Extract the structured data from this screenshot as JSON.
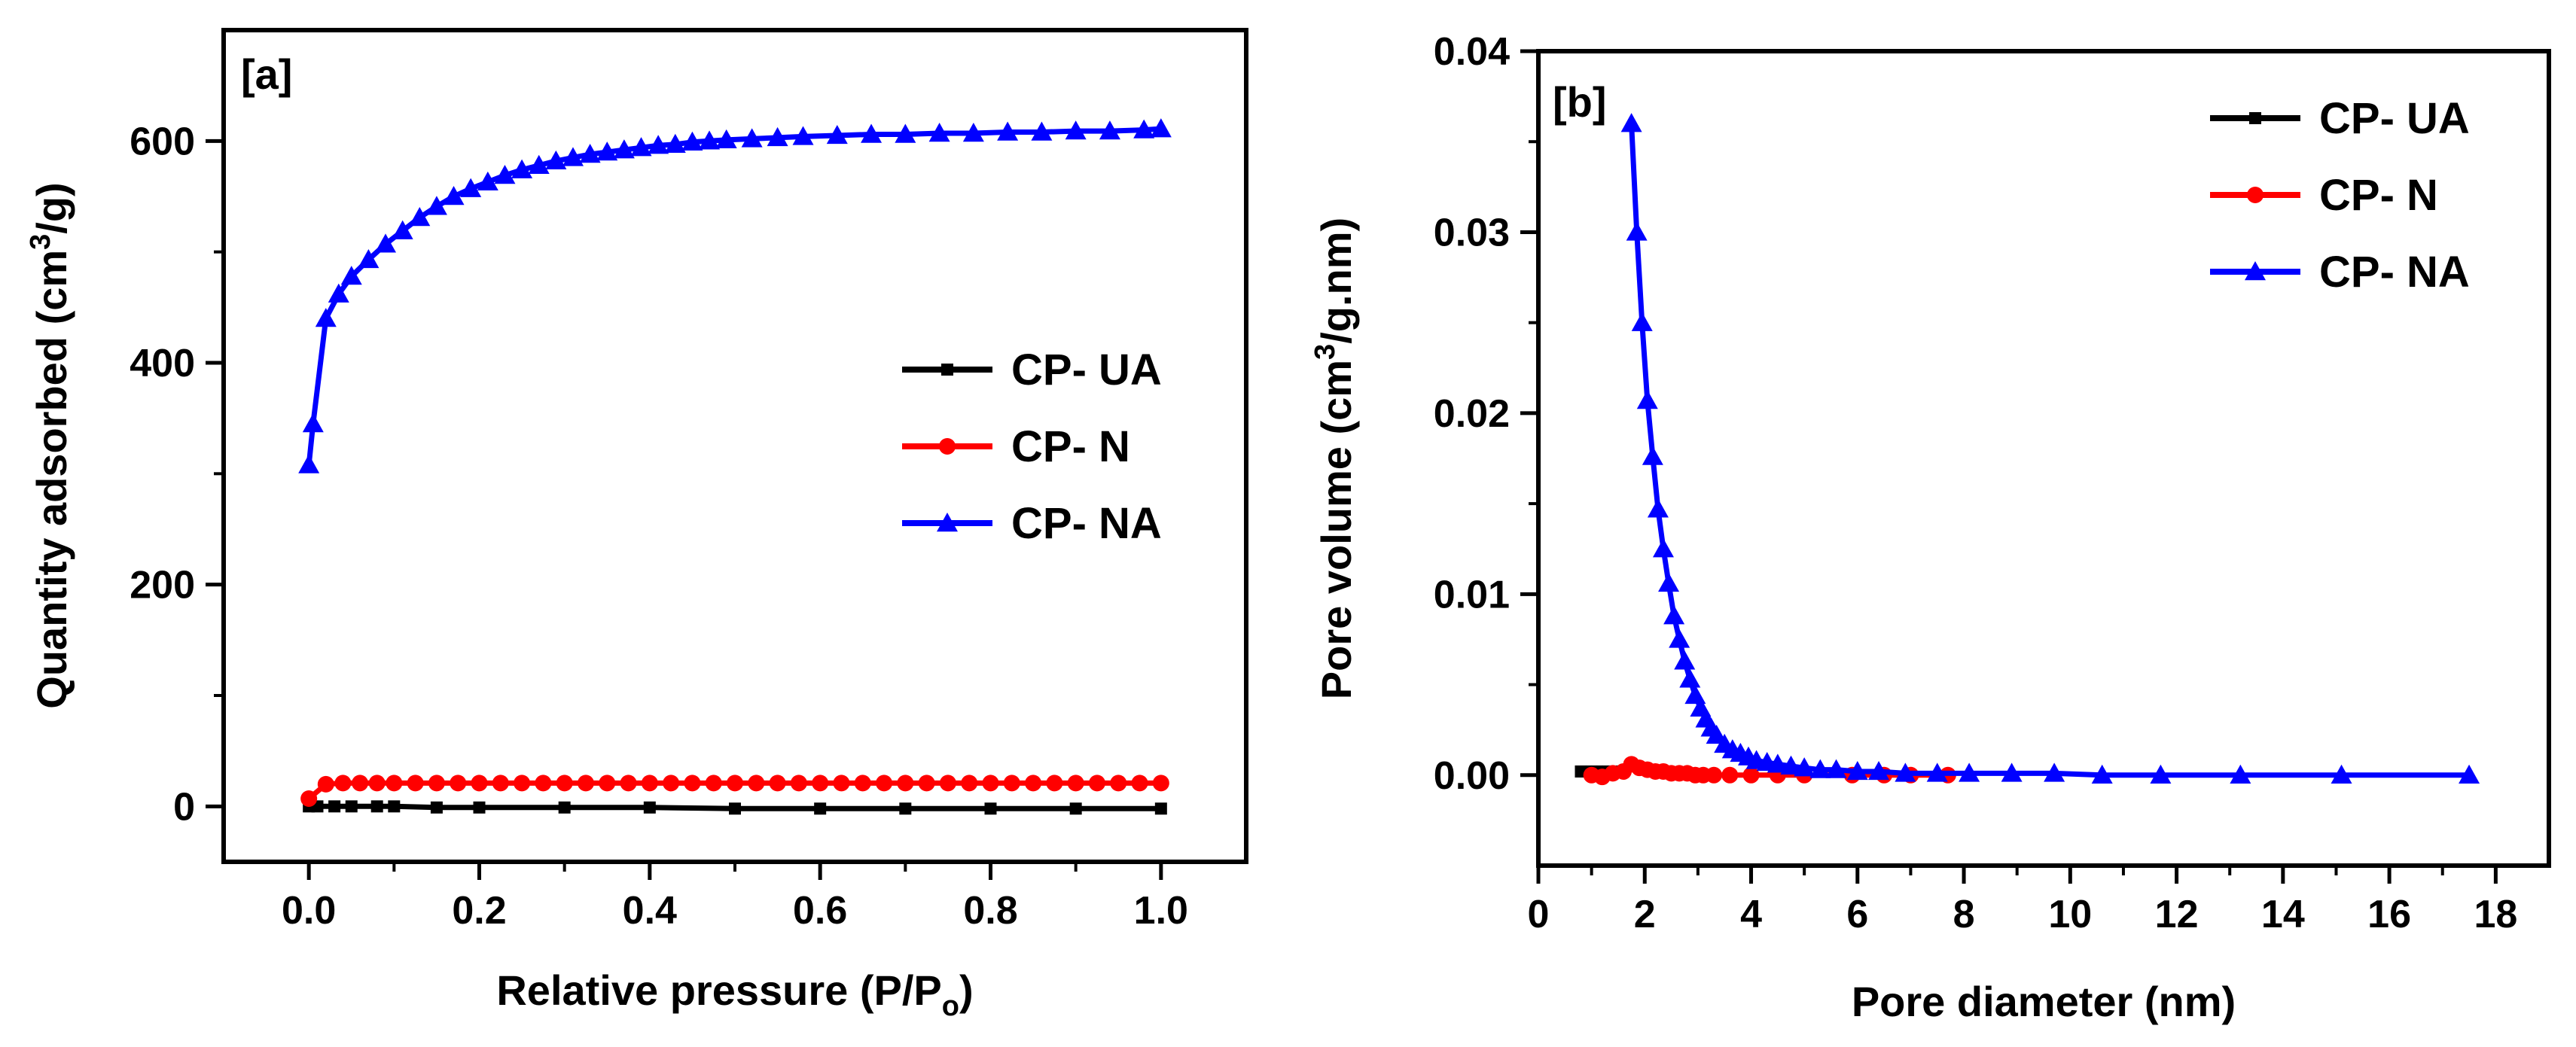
{
  "chart_data": [
    {
      "type": "line",
      "panel_label": "[a]",
      "xlabel": "Relative pressure (P/P",
      "xlabel_sub": "o",
      "xlabel_end": ")",
      "ylabel": "Quantity adsorbed (cm",
      "ylabel_sup": "3",
      "ylabel_end": "/g)",
      "xlim": [
        -0.1,
        1.1
      ],
      "ylim": [
        -50,
        700
      ],
      "xticks": [
        0.0,
        0.2,
        0.4,
        0.6,
        0.8,
        1.0
      ],
      "xtick_labels": [
        "0.0",
        "0.2",
        "0.4",
        "0.6",
        "0.8",
        "1.0"
      ],
      "yticks": [
        0,
        200,
        400,
        600
      ],
      "ytick_labels": [
        "0",
        "200",
        "400",
        "600"
      ],
      "legend_position": "center-right",
      "series": [
        {
          "name": "CP- UA",
          "color": "#000000",
          "marker": "square",
          "x": [
            0.0,
            0.01,
            0.03,
            0.05,
            0.08,
            0.1,
            0.15,
            0.2,
            0.3,
            0.4,
            0.5,
            0.6,
            0.7,
            0.8,
            0.9,
            1.0
          ],
          "y": [
            0,
            0,
            0,
            0,
            0,
            0,
            -1,
            -1,
            -1,
            -1,
            -2,
            -2,
            -2,
            -2,
            -2,
            -2
          ]
        },
        {
          "name": "CP- N",
          "color": "#ff0000",
          "marker": "circle",
          "x": [
            0.0,
            0.02,
            0.04,
            0.06,
            0.08,
            0.1,
            0.125,
            0.15,
            0.175,
            0.2,
            0.225,
            0.25,
            0.275,
            0.3,
            0.325,
            0.35,
            0.375,
            0.4,
            0.425,
            0.45,
            0.475,
            0.5,
            0.525,
            0.55,
            0.575,
            0.6,
            0.625,
            0.65,
            0.675,
            0.7,
            0.725,
            0.75,
            0.775,
            0.8,
            0.825,
            0.85,
            0.875,
            0.9,
            0.925,
            0.95,
            0.975,
            1.0
          ],
          "y": [
            7,
            20,
            21,
            21,
            21,
            21,
            21,
            21,
            21,
            21,
            21,
            21,
            21,
            21,
            21,
            21,
            21,
            21,
            21,
            21,
            21,
            21,
            21,
            21,
            21,
            21,
            21,
            21,
            21,
            21,
            21,
            21,
            21,
            21,
            21,
            21,
            21,
            21,
            21,
            21,
            21,
            21
          ]
        },
        {
          "name": "CP- NA",
          "color": "#0000ff",
          "marker": "triangle",
          "x": [
            0.0,
            0.005,
            0.02,
            0.035,
            0.05,
            0.07,
            0.09,
            0.11,
            0.13,
            0.15,
            0.17,
            0.19,
            0.21,
            0.23,
            0.25,
            0.27,
            0.29,
            0.31,
            0.33,
            0.35,
            0.37,
            0.39,
            0.41,
            0.43,
            0.45,
            0.47,
            0.49,
            0.52,
            0.55,
            0.58,
            0.62,
            0.66,
            0.7,
            0.74,
            0.78,
            0.82,
            0.86,
            0.9,
            0.94,
            0.98,
            1.0
          ],
          "y": [
            308,
            345,
            440,
            462,
            478,
            493,
            507,
            519,
            531,
            541,
            550,
            557,
            563,
            569,
            574,
            578,
            582,
            585,
            588,
            590,
            592,
            594,
            596,
            597,
            599,
            600,
            601,
            602,
            603,
            604,
            605,
            606,
            606,
            607,
            607,
            608,
            608,
            609,
            609,
            610,
            611
          ]
        }
      ]
    },
    {
      "type": "line",
      "panel_label": "[b]",
      "xlabel": "Pore diameter (nm)",
      "ylabel": "Pore volume (cm",
      "ylabel_sup": "3",
      "ylabel_end": "/g.nm)",
      "xlim": [
        0,
        19
      ],
      "ylim": [
        -0.005,
        0.04
      ],
      "xticks": [
        0,
        2,
        4,
        6,
        8,
        10,
        12,
        14,
        16,
        18
      ],
      "xtick_labels": [
        "0",
        "2",
        "4",
        "6",
        "8",
        "10",
        "12",
        "14",
        "16",
        "18"
      ],
      "yticks": [
        0.0,
        0.01,
        0.02,
        0.03,
        0.04
      ],
      "ytick_labels": [
        "0.00",
        "0.01",
        "0.02",
        "0.03",
        "0.04"
      ],
      "legend_position": "top-right",
      "series": [
        {
          "name": "CP- UA",
          "color": "#000000",
          "marker": "square",
          "x": [
            0.8,
            0.9,
            1.0,
            1.1,
            1.2,
            1.3,
            1.4
          ],
          "y": [
            0.0002,
            0.0002,
            0.0002,
            0.0002,
            0.0002,
            0.0002,
            0.0002
          ]
        },
        {
          "name": "CP- N",
          "color": "#ff0000",
          "marker": "circle",
          "x": [
            1.0,
            1.2,
            1.4,
            1.6,
            1.75,
            1.9,
            2.05,
            2.2,
            2.35,
            2.5,
            2.65,
            2.8,
            2.95,
            3.1,
            3.3,
            3.6,
            4.0,
            4.5,
            5.0,
            5.9,
            6.5,
            7.0,
            7.7
          ],
          "y": [
            0.0,
            -0.0001,
            0.0001,
            0.0002,
            0.0006,
            0.0004,
            0.0003,
            0.0002,
            0.0002,
            0.0001,
            0.0001,
            0.0001,
            0.0,
            0.0,
            0.0,
            0.0,
            0.0,
            0.0,
            0.0,
            0.0,
            0.0,
            0.0,
            0.0
          ]
        },
        {
          "name": "CP- NA",
          "color": "#0000ff",
          "marker": "triangle",
          "x": [
            1.75,
            1.85,
            1.95,
            2.05,
            2.15,
            2.25,
            2.35,
            2.45,
            2.55,
            2.65,
            2.75,
            2.85,
            2.95,
            3.05,
            3.15,
            3.25,
            3.35,
            3.5,
            3.65,
            3.8,
            3.95,
            4.1,
            4.3,
            4.5,
            4.75,
            5.0,
            5.3,
            5.6,
            6.0,
            6.4,
            6.9,
            7.5,
            8.1,
            8.9,
            9.7,
            10.6,
            11.7,
            13.2,
            15.1,
            17.5
          ],
          "y": [
            0.036,
            0.03,
            0.025,
            0.0207,
            0.0176,
            0.0147,
            0.0125,
            0.0106,
            0.0088,
            0.0075,
            0.0063,
            0.0053,
            0.0044,
            0.0037,
            0.0031,
            0.0026,
            0.0022,
            0.0017,
            0.0014,
            0.0012,
            0.001,
            0.0008,
            0.0007,
            0.0006,
            0.0005,
            0.0004,
            0.0003,
            0.0003,
            0.0002,
            0.0002,
            0.0001,
            0.0001,
            0.0001,
            0.0001,
            0.0001,
            0.0,
            0.0,
            0.0,
            0.0,
            0.0
          ]
        }
      ]
    }
  ]
}
